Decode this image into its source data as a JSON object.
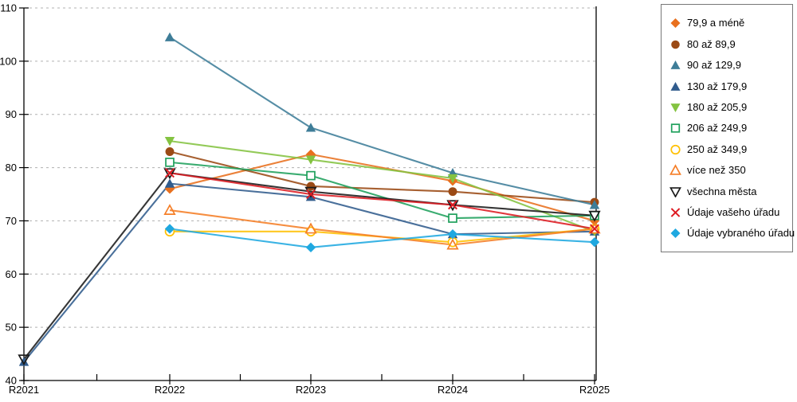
{
  "chart_data": {
    "type": "line",
    "title": "",
    "xlabel": "",
    "ylabel": "",
    "categories": [
      "R2021",
      "R2022",
      "R2023",
      "R2024",
      "R2025"
    ],
    "ylim": [
      40,
      110
    ],
    "ytick_step": 10,
    "yticks": [
      40,
      50,
      60,
      70,
      80,
      90,
      100,
      110
    ],
    "grid": "horizontal-dashed",
    "grid_color": "#b0b0b0",
    "axis_color": "#000000",
    "legend_position": "right",
    "series": [
      {
        "name": "79,9 a méně",
        "color": "#E8701E",
        "marker": "diamond",
        "filled": true,
        "values": [
          null,
          76,
          82.5,
          77.5,
          70
        ]
      },
      {
        "name": "80 až 89,9",
        "color": "#9B4A15",
        "marker": "circle",
        "filled": true,
        "values": [
          null,
          83,
          76.5,
          75.5,
          73.5
        ]
      },
      {
        "name": "90 až 129,9",
        "color": "#3E7D98",
        "marker": "triangle-up",
        "filled": true,
        "values": [
          null,
          104.5,
          87.5,
          79,
          73
        ]
      },
      {
        "name": "130 až 179,9",
        "color": "#315C8D",
        "marker": "triangle-up",
        "filled": true,
        "values": [
          43.5,
          77,
          74.5,
          67.5,
          68
        ]
      },
      {
        "name": "180 až 205,9",
        "color": "#84C341",
        "marker": "triangle-down",
        "filled": true,
        "values": [
          null,
          85,
          81.5,
          78,
          68
        ]
      },
      {
        "name": "206 až 249,9",
        "color": "#1FA05C",
        "marker": "square",
        "filled": false,
        "values": [
          null,
          81,
          78.5,
          70.5,
          71
        ]
      },
      {
        "name": "250 až 349,9",
        "color": "#FFC003",
        "marker": "circle",
        "filled": false,
        "values": [
          null,
          68,
          68,
          66,
          68.5
        ]
      },
      {
        "name": "více než 350",
        "color": "#F57E27",
        "marker": "triangle-up",
        "filled": false,
        "values": [
          null,
          72,
          68.5,
          65.5,
          68.5
        ]
      },
      {
        "name": "všechna města",
        "color": "#1A1A1A",
        "marker": "triangle-down",
        "filled": false,
        "values": [
          44,
          79,
          75.5,
          73,
          71
        ]
      },
      {
        "name": "Údaje vašeho úřadu",
        "color": "#DE1B22",
        "marker": "x",
        "filled": false,
        "values": [
          null,
          79,
          75,
          73,
          68.5
        ]
      },
      {
        "name": "Údaje vybraného úřadu",
        "color": "#1FA8E0",
        "marker": "diamond",
        "filled": true,
        "values": [
          null,
          68.5,
          65,
          67.5,
          66
        ]
      }
    ]
  }
}
